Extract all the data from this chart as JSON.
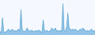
{
  "values": [
    1.5,
    1.0,
    7.5,
    1.5,
    1.0,
    1.5,
    2.0,
    2.5,
    1.5,
    2.0,
    2.5,
    1.5,
    2.0,
    1.5,
    2.0,
    2.5,
    1.5,
    11.0,
    2.5,
    1.5,
    1.5,
    2.0,
    3.0,
    2.0,
    1.5,
    2.0,
    2.0,
    1.5,
    1.5,
    2.0,
    1.5,
    2.0,
    2.0,
    1.5,
    1.0,
    6.5,
    2.0,
    1.5,
    2.0,
    1.5,
    1.5,
    2.0,
    3.0,
    2.0,
    2.5,
    3.0,
    1.5,
    2.0,
    1.5,
    2.0,
    1.5,
    13.5,
    2.0,
    1.5,
    3.5,
    9.5,
    3.0,
    2.5,
    2.0,
    2.5,
    2.0,
    2.5,
    2.0,
    1.5,
    2.0,
    2.5,
    2.0,
    3.0,
    2.5,
    2.0,
    1.5,
    2.0,
    1.5,
    2.0,
    2.5,
    2.0,
    1.5,
    2.0
  ],
  "line_color": "#5ba3d0",
  "fill_color": "#92c5e8",
  "background_color": "#f5f9ff",
  "ylim_min": 0,
  "ylim_max": 15
}
